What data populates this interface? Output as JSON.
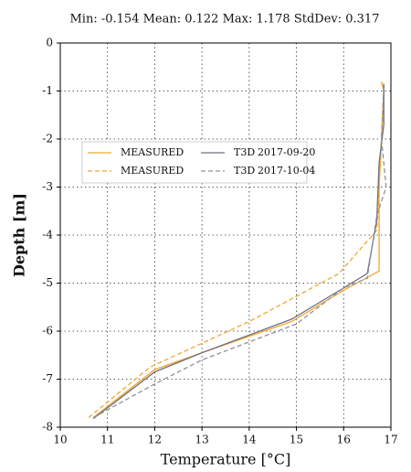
{
  "chart_data": {
    "type": "line",
    "title": "Min: -0.154  Mean: 0.122  Max: 1.178  StdDev: 0.317",
    "x_label": "Temperature [°C]",
    "y_label": "Depth [m]",
    "xlim": [
      10,
      17
    ],
    "xticks": [
      10,
      11,
      12,
      13,
      14,
      15,
      16,
      17
    ],
    "ylim": [
      -8,
      0
    ],
    "yticks": [
      0,
      -1,
      -2,
      -3,
      -4,
      -5,
      -6,
      -7,
      -8
    ],
    "grid": true,
    "series": [
      {
        "name": "MEASURED",
        "color": "#f0a830",
        "dash": false,
        "x": [
          10.7,
          12.0,
          13.0,
          14.9,
          16.0,
          16.75,
          16.75,
          16.75,
          16.8,
          16.85,
          16.8
        ],
        "y": [
          -7.8,
          -6.8,
          -6.45,
          -5.8,
          -5.15,
          -4.75,
          -4.0,
          -3.0,
          -2.0,
          -1.0,
          -0.8
        ]
      },
      {
        "name": "MEASURED",
        "color": "#f0a830",
        "dash": true,
        "x": [
          10.6,
          11.9,
          14.0,
          15.9,
          16.7,
          16.75,
          16.8,
          16.85,
          16.8
        ],
        "y": [
          -7.8,
          -6.75,
          -5.8,
          -4.8,
          -3.9,
          -3.0,
          -2.0,
          -1.0,
          -0.8
        ]
      },
      {
        "name": "T3D",
        "date": "2017-09-20",
        "color": "#707080",
        "dash": false,
        "x": [
          10.7,
          12.0,
          13.0,
          14.9,
          16.0,
          16.5,
          16.7,
          16.75,
          16.85,
          16.85
        ],
        "y": [
          -7.82,
          -6.85,
          -6.45,
          -5.75,
          -5.1,
          -4.8,
          -3.7,
          -2.5,
          -1.7,
          -0.85
        ]
      },
      {
        "name": "T3D",
        "date": "2017-10-04",
        "color": "#9090a0",
        "dash": true,
        "x": [
          10.7,
          12.0,
          13.0,
          15.0,
          16.0,
          16.5,
          16.7,
          16.9,
          16.8,
          16.85
        ],
        "y": [
          -7.8,
          -7.1,
          -6.6,
          -5.85,
          -5.1,
          -4.9,
          -3.6,
          -3.0,
          -2.0,
          -0.85
        ]
      }
    ]
  }
}
